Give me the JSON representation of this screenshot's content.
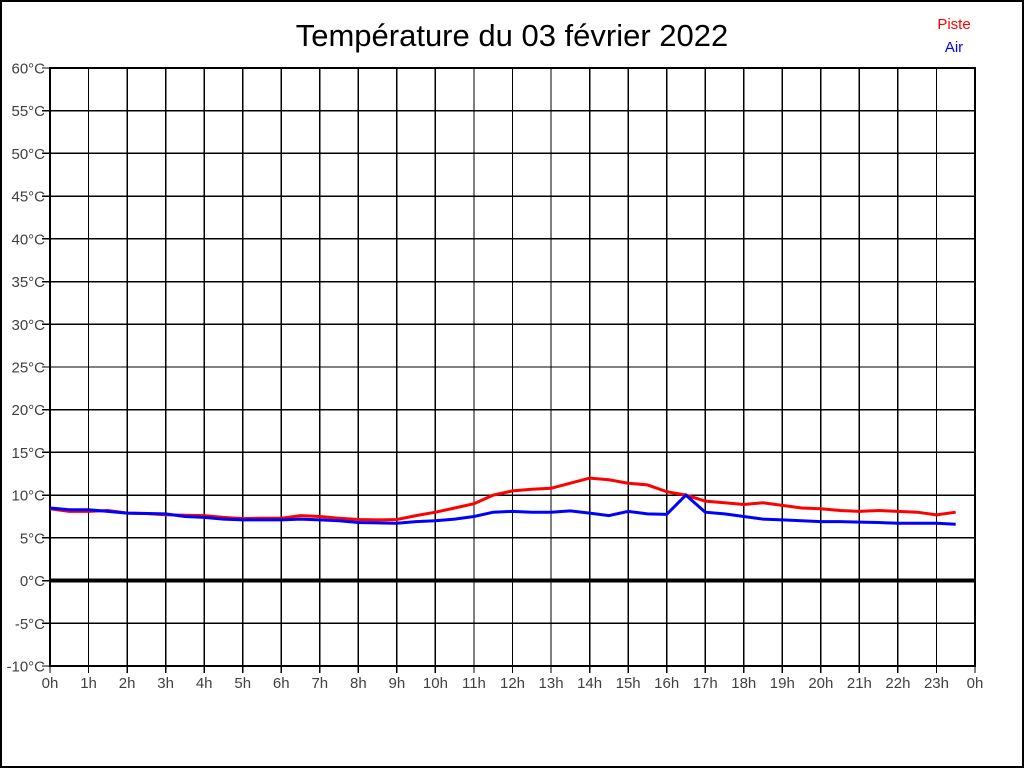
{
  "title": "Température du 03 février 2022",
  "legend": {
    "piste_label": "Piste",
    "air_label": "Air"
  },
  "colors": {
    "piste": "#ff0000",
    "air": "#0000ff",
    "grid": "#000000",
    "plot_border": "#000000",
    "zero_line": "#000000",
    "axis_text": "#404040",
    "background": "#ffffff"
  },
  "chart_data": {
    "type": "line",
    "title": "Température du 03 février 2022",
    "xlabel": "",
    "ylabel": "",
    "xlim": [
      0,
      24
    ],
    "ylim": [
      -10,
      60
    ],
    "y_step": 5,
    "x_step_hours": 0.5,
    "grid": true,
    "zero_line_emphasized": true,
    "legend_position": "top-right",
    "x_tick_labels": [
      "0h",
      "1h",
      "2h",
      "3h",
      "4h",
      "5h",
      "6h",
      "7h",
      "8h",
      "9h",
      "10h",
      "11h",
      "12h",
      "13h",
      "14h",
      "15h",
      "16h",
      "17h",
      "18h",
      "19h",
      "20h",
      "21h",
      "22h",
      "23h",
      "0h"
    ],
    "y_tick_labels": [
      "60°C",
      "55°C",
      "50°C",
      "45°C",
      "40°C",
      "35°C",
      "30°C",
      "25°C",
      "20°C",
      "15°C",
      "10°C",
      "5°C",
      "0°C",
      "-5°C",
      "-10°C"
    ],
    "series": [
      {
        "name": "Piste",
        "color": "#ff0000",
        "values": [
          8.4,
          8.1,
          8.1,
          8.2,
          7.9,
          7.85,
          7.7,
          7.65,
          7.6,
          7.4,
          7.25,
          7.3,
          7.3,
          7.6,
          7.5,
          7.3,
          7.15,
          7.1,
          7.15,
          7.6,
          8.0,
          8.5,
          9.0,
          10.0,
          10.5,
          10.7,
          10.8,
          11.4,
          12.0,
          11.8,
          11.4,
          11.2,
          10.4,
          10.0,
          9.3,
          9.1,
          8.9,
          9.1,
          8.8,
          8.5,
          8.4,
          8.2,
          8.1,
          8.2,
          8.1,
          8.0,
          7.7,
          8.0
        ]
      },
      {
        "name": "Air",
        "color": "#0000ff",
        "values": [
          8.5,
          8.3,
          8.3,
          8.1,
          7.9,
          7.85,
          7.8,
          7.5,
          7.4,
          7.2,
          7.1,
          7.1,
          7.1,
          7.2,
          7.1,
          7.0,
          6.8,
          6.75,
          6.7,
          6.9,
          7.0,
          7.2,
          7.5,
          8.0,
          8.1,
          8.0,
          8.0,
          8.15,
          7.9,
          7.6,
          8.1,
          7.8,
          7.75,
          10.0,
          8.0,
          7.8,
          7.5,
          7.2,
          7.1,
          7.0,
          6.9,
          6.9,
          6.85,
          6.8,
          6.7,
          6.7,
          6.7,
          6.6
        ]
      }
    ]
  }
}
